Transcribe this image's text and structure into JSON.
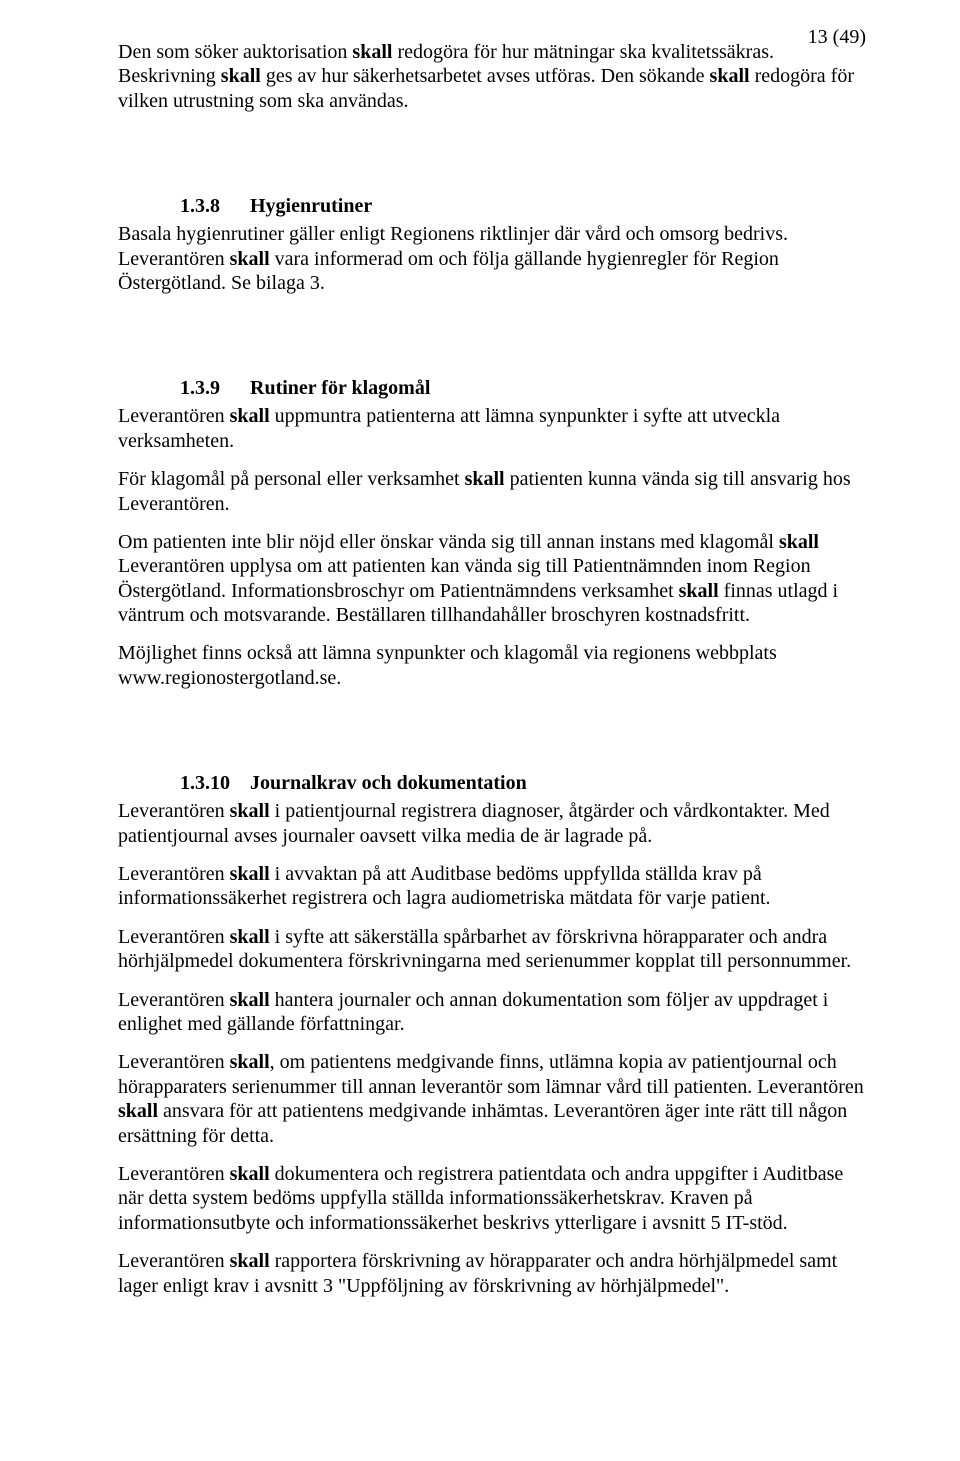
{
  "pageNumber": "13 (49)",
  "intro": {
    "p1_a": "Den som söker auktorisation ",
    "p1_b": "skall",
    "p1_c": " redogöra för hur mätningar ska kvalitetssäkras. Beskrivning ",
    "p1_d": "skall",
    "p1_e": " ges av hur säkerhetsarbetet avses utföras. Den sökande ",
    "p1_f": "skall",
    "p1_g": " redogöra för vilken utrustning som ska användas."
  },
  "s138": {
    "num": "1.3.8",
    "title": "Hygienrutiner",
    "p1": "Basala hygienrutiner gäller enligt Regionens riktlinjer där vård och omsorg bedrivs. Leverantören ",
    "p1_b": "skall",
    "p1_c": " vara informerad om och följa gällande hygienregler för Region Östergötland. Se bilaga 3."
  },
  "s139": {
    "num": "1.3.9",
    "title": "Rutiner för klagomål",
    "p1_a": "Leverantören ",
    "p1_b": "skall",
    "p1_c": " uppmuntra patienterna att lämna synpunkter i syfte att utveckla verksamheten.",
    "p2_a": "För klagomål på personal eller verksamhet ",
    "p2_b": "skall",
    "p2_c": " patienten kunna vända sig till ansvarig hos Leverantören.",
    "p3_a": "Om patienten inte blir nöjd eller önskar vända sig till annan  instans med klagomål ",
    "p3_b": "skall",
    "p3_c": " Leverantören upplysa om att patienten kan vända sig till Patientnämnden inom Region Östergötland. Informationsbroschyr om Patientnämndens verksamhet ",
    "p3_d": "skall",
    "p3_e": " finnas utlagd i väntrum och motsvarande. Beställaren tillhandahåller broschyren  kostnadsfritt.",
    "p4": "Möjlighet finns också att lämna synpunkter och klagomål via regionens webbplats www.regionostergotland.se."
  },
  "s1310": {
    "num": "1.3.10",
    "title": "Journalkrav och dokumentation",
    "p1_a": "Leverantören ",
    "p1_b": "skall",
    "p1_c": " i patientjournal registrera diagnoser, åtgärder och vårdkontakter. Med patientjournal avses journaler oavsett vilka media de är lagrade på.",
    "p2_a": "Leverantören ",
    "p2_b": "skall",
    "p2_c": " i avvaktan på att Auditbase bedöms uppfyllda ställda krav på informationssäkerhet registrera och lagra audiometriska mätdata för varje patient.",
    "p3_a": "Leverantören ",
    "p3_b": "skall",
    "p3_c": " i syfte att säkerställa spårbarhet av förskrivna hörapparater och andra hörhjälpmedel dokumentera förskrivningarna med serienummer kopplat till personnummer.",
    "p4_a": "Leverantören ",
    "p4_b": "skall",
    "p4_c": " hantera journaler och annan dokumentation som följer av uppdraget i enlighet med gällande författningar.",
    "p5_a": "Leverantören ",
    "p5_b": "skall",
    "p5_c": ", om patientens medgivande finns, utlämna kopia av patientjournal och hörapparaters serienummer till annan leverantör som lämnar vård till patienten. Leverantören ",
    "p5_d": "skall",
    "p5_e": " ansvara för att patientens medgivande inhämtas. Leverantören äger inte rätt till någon ersättning för detta.",
    "p6_a": "Leverantören ",
    "p6_b": "skall",
    "p6_c": " dokumentera och registrera patientdata och andra uppgifter i Auditbase när detta system bedöms uppfylla ställda informationssäkerhetskrav. Kraven på informationsutbyte och informationssäkerhet beskrivs ytterligare i avsnitt 5 IT-stöd.",
    "p7_a": "Leverantören ",
    "p7_b": "skall",
    "p7_c": " rapportera förskrivning av hörapparater och andra hörhjälpmedel samt lager enligt krav i avsnitt 3 \"Uppföljning av förskrivning av hörhjälpmedel\"."
  }
}
